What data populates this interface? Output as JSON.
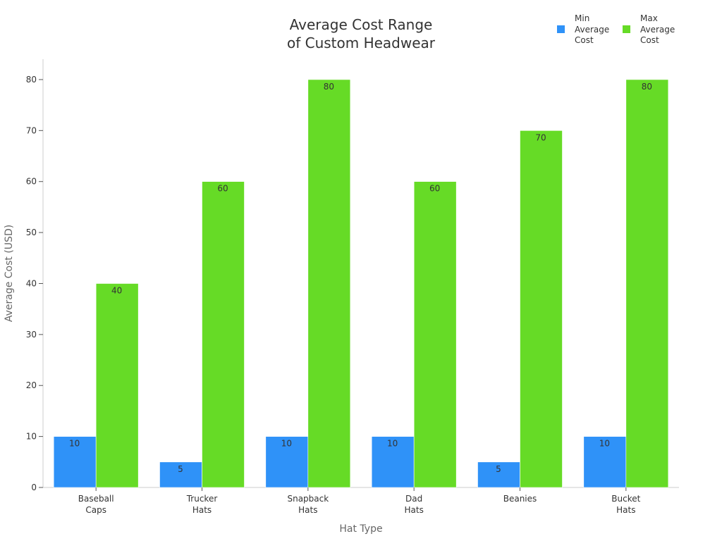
{
  "chart_data": {
    "type": "bar",
    "title_lines": [
      "Average Cost Range",
      "of Custom Headwear"
    ],
    "xlabel": "Hat Type",
    "ylabel": "Average Cost (USD)",
    "categories": [
      [
        "Baseball",
        "Caps"
      ],
      [
        "Trucker",
        "Hats"
      ],
      [
        "Snapback",
        "Hats"
      ],
      [
        "Dad",
        "Hats"
      ],
      [
        "Beanies"
      ],
      [
        "Bucket",
        "Hats"
      ]
    ],
    "series": [
      {
        "name": "Min\nAverage\nCost",
        "color": "#2f92f8",
        "values": [
          10,
          5,
          10,
          10,
          5,
          10
        ]
      },
      {
        "name": "Max\nAverage\nCost",
        "color": "#66db26",
        "values": [
          40,
          60,
          80,
          60,
          70,
          80
        ]
      }
    ],
    "ylim": [
      0,
      84
    ],
    "yticks": [
      0,
      10,
      20,
      30,
      40,
      50,
      60,
      70,
      80
    ],
    "grid": false,
    "legend_position": "top-right"
  }
}
